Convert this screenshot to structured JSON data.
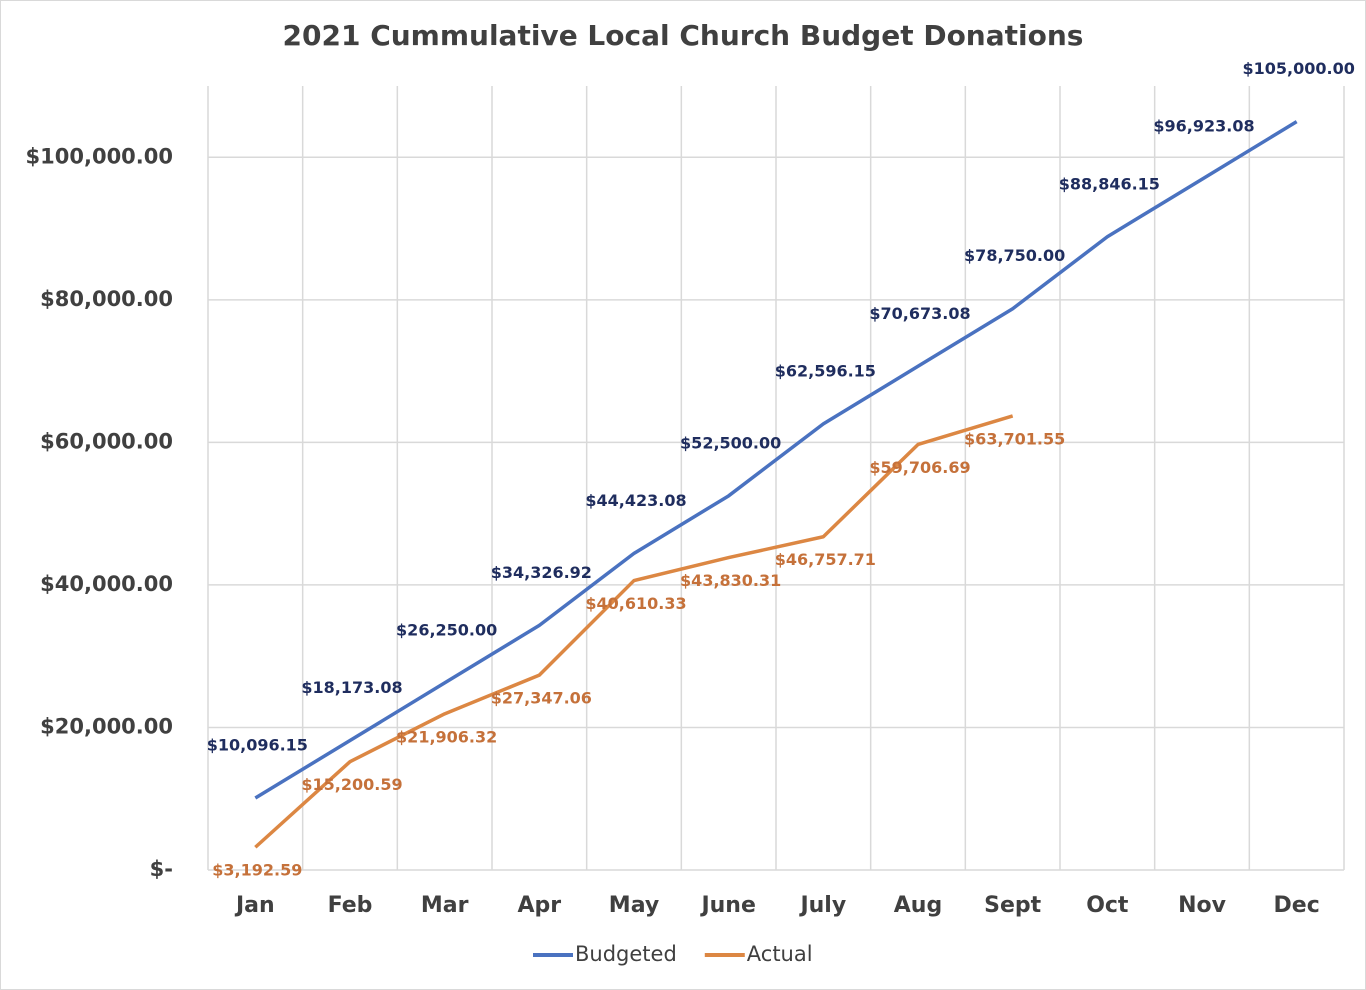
{
  "chart_data": {
    "type": "line",
    "title": "2021 Cummulative Local Church Budget Donations",
    "categories": [
      "Jan",
      "Feb",
      "Mar",
      "Apr",
      "May",
      "June",
      "July",
      "Aug",
      "Sept",
      "Oct",
      "Nov",
      "Dec"
    ],
    "series": [
      {
        "name": "Budgeted",
        "color": "#4a72c0",
        "label_color": "#1f2d5e",
        "values": [
          10096.15,
          18173.08,
          26250,
          34326.92,
          44423.08,
          52500,
          62596.15,
          70673.08,
          78750,
          88846.15,
          96923.08,
          105000
        ],
        "value_labels": [
          "$10,096.15",
          "$18,173.08",
          "$26,250.00",
          "$34,326.92",
          "$44,423.08",
          "$52,500.00",
          "$62,596.15",
          "$70,673.08",
          "$78,750.00",
          "$88,846.15",
          "$96,923.08",
          "$105,000.00"
        ]
      },
      {
        "name": "Actual",
        "color": "#dc8743",
        "label_color": "#c5713a",
        "values": [
          3192.59,
          15200.59,
          21906.32,
          27347.06,
          40610.33,
          43830.31,
          46757.71,
          59706.69,
          63701.55,
          null,
          null,
          null
        ],
        "value_labels": [
          "$3,192.59",
          "$15,200.59",
          "$21,906.32",
          "$27,347.06",
          "$40,610.33",
          "$43,830.31",
          "$46,757.71",
          "$59,706.69",
          "$63,701.55",
          null,
          null,
          null
        ]
      }
    ],
    "ylim": [
      0,
      110000
    ],
    "yticks": [
      {
        "value": 0,
        "label": "$-"
      },
      {
        "value": 20000,
        "label": "$20,000.00"
      },
      {
        "value": 40000,
        "label": "$40,000.00"
      },
      {
        "value": 60000,
        "label": "$60,000.00"
      },
      {
        "value": 80000,
        "label": "$80,000.00"
      },
      {
        "value": 100000,
        "label": "$100,000.00"
      }
    ],
    "grid": true,
    "legend": "bottom"
  }
}
